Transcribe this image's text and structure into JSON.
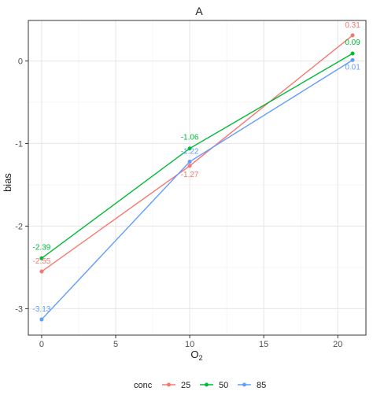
{
  "chart_data": {
    "type": "line",
    "title": "A",
    "xlabel_main": "O",
    "xlabel_sub": "2",
    "ylabel": "bias",
    "x_ticks": [
      "0",
      "5",
      "10",
      "15",
      "20"
    ],
    "y_ticks": [
      "0",
      "-1",
      "-2",
      "-3"
    ],
    "xlim": [
      -0.9,
      21.9
    ],
    "ylim": [
      -3.32,
      0.49
    ],
    "grid": true,
    "legend_title": "conc",
    "legend_position": "bottom",
    "x": [
      0,
      10,
      21
    ],
    "series": [
      {
        "name": "25",
        "color": "#F8766D",
        "values": [
          -2.55,
          -1.27,
          0.31
        ],
        "labels": [
          "-2.55",
          "-1.27",
          "0.31"
        ]
      },
      {
        "name": "50",
        "color": "#00BA38",
        "values": [
          -2.39,
          -1.06,
          0.09
        ],
        "labels": [
          "-2.39",
          "-1.06",
          "0.09"
        ]
      },
      {
        "name": "85",
        "color": "#619CFF",
        "values": [
          -3.13,
          -1.22,
          0.01
        ],
        "labels": [
          "-3.13",
          "-1.22",
          "0.01"
        ]
      }
    ]
  }
}
